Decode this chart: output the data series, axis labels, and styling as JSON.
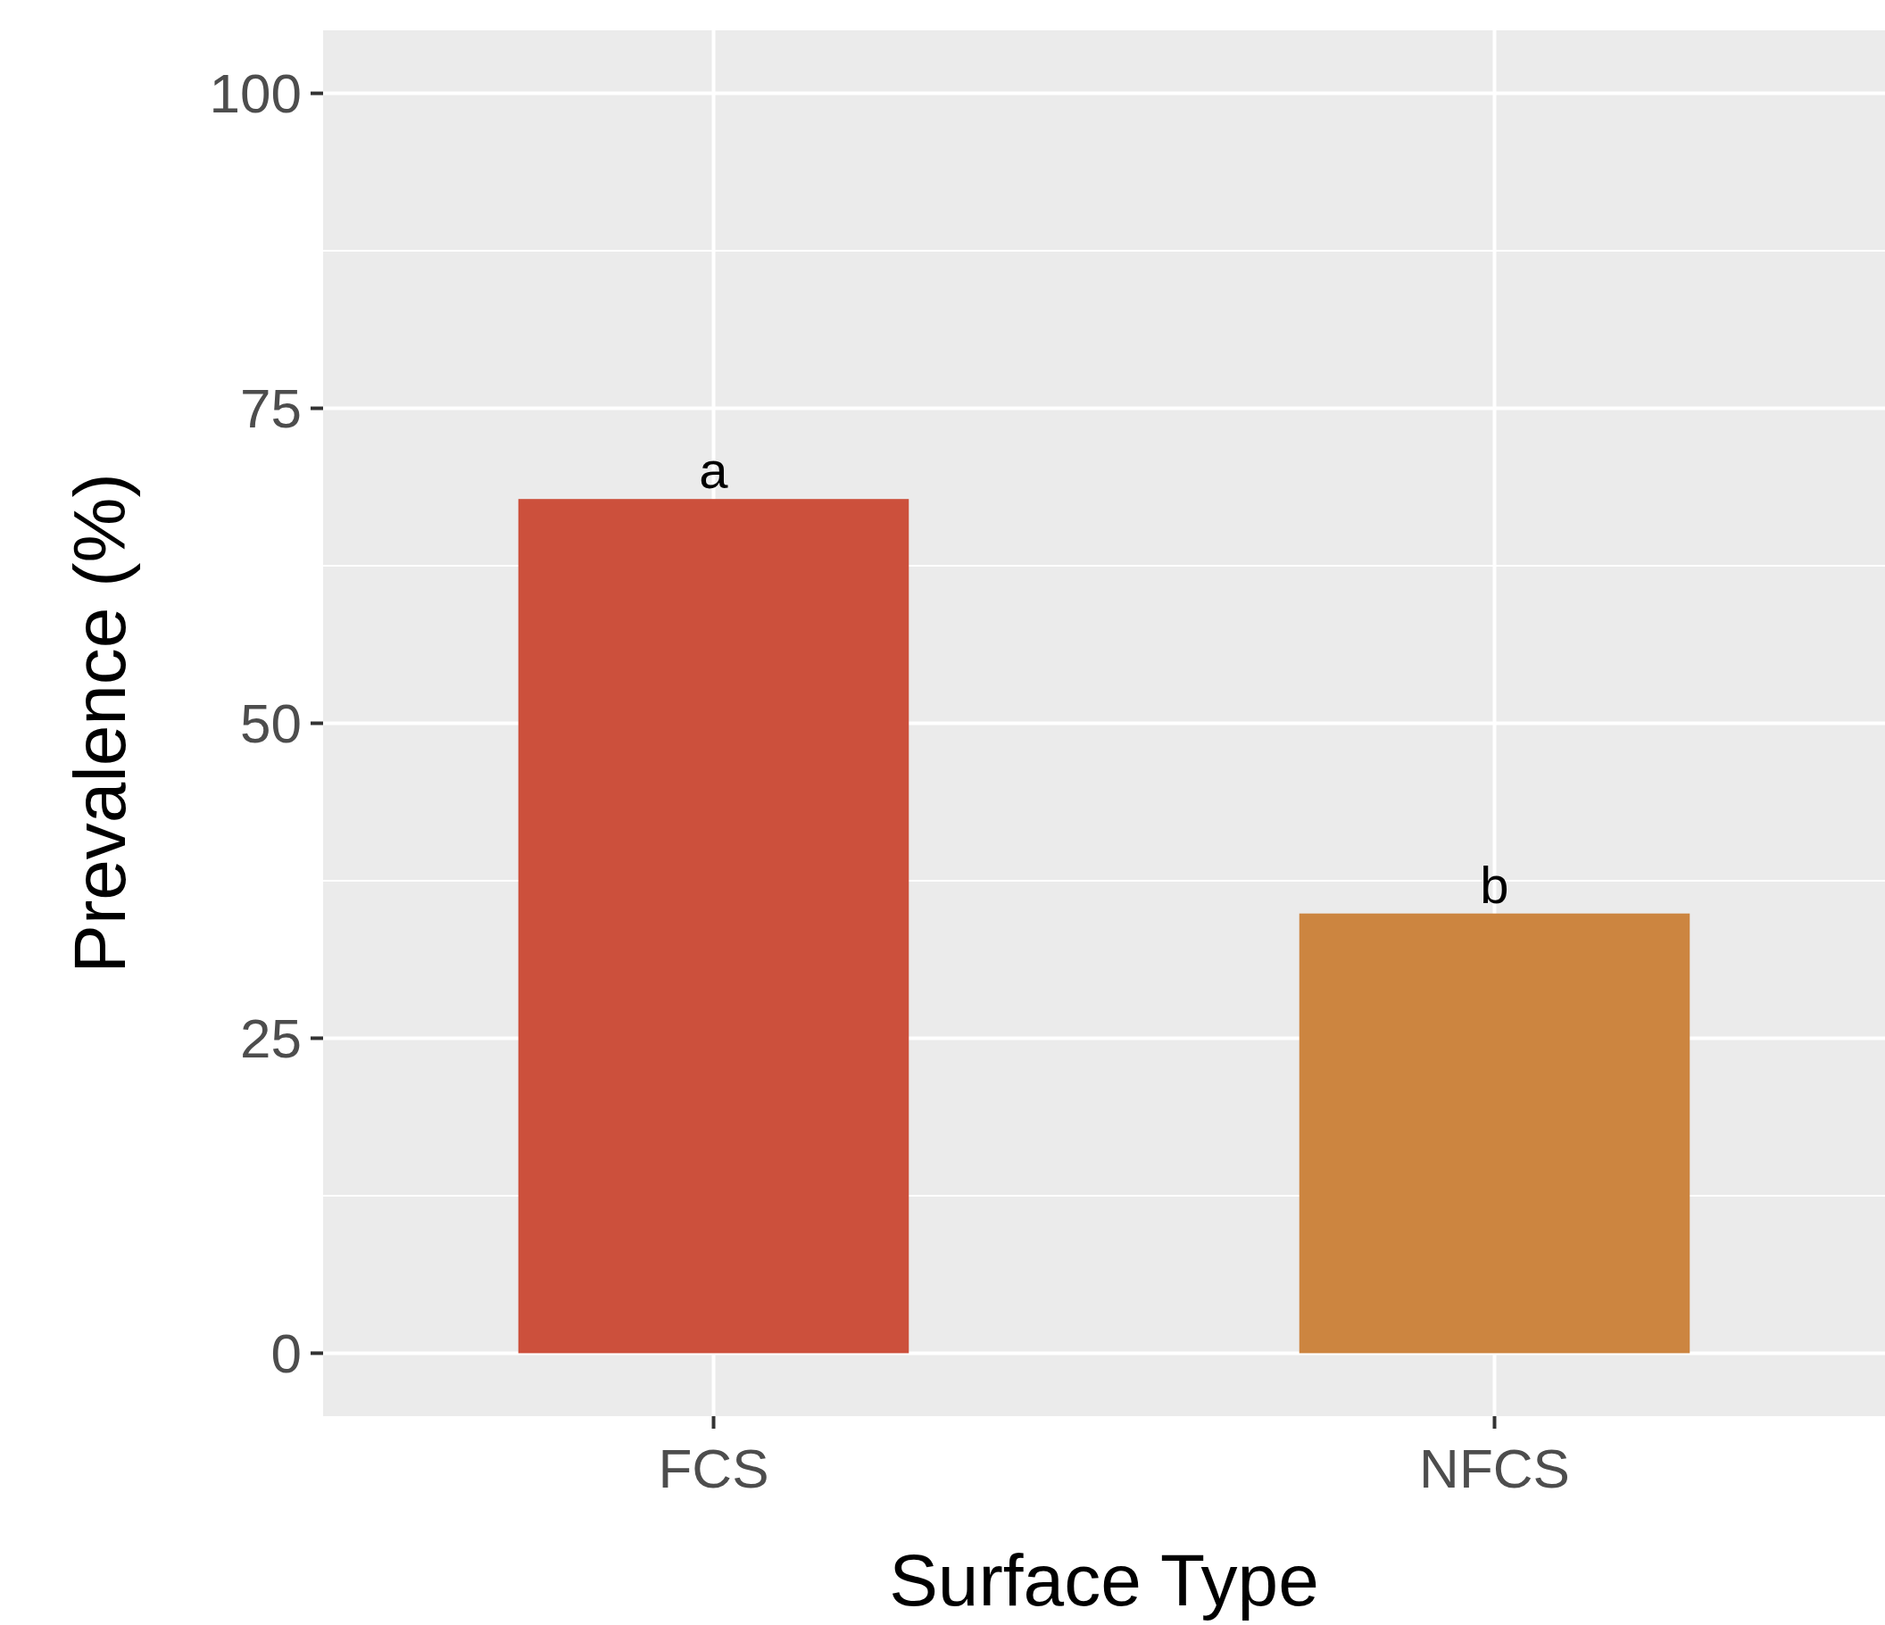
{
  "chart_data": {
    "type": "bar",
    "xlabel": "Surface Type",
    "ylabel": "Prevalence (%)",
    "categories": [
      "FCS",
      "NFCS"
    ],
    "values": [
      67.8,
      34.9
    ],
    "colors": [
      "#cc503c",
      "#cc8540"
    ],
    "ylim": [
      -5,
      105
    ],
    "yticks": [
      0,
      25,
      50,
      75,
      100
    ],
    "grid": true,
    "annotations": [
      {
        "text": "a",
        "x": "FCS",
        "y": 67.8
      },
      {
        "text": "b",
        "x": "NFCS",
        "y": 34.9
      }
    ]
  }
}
